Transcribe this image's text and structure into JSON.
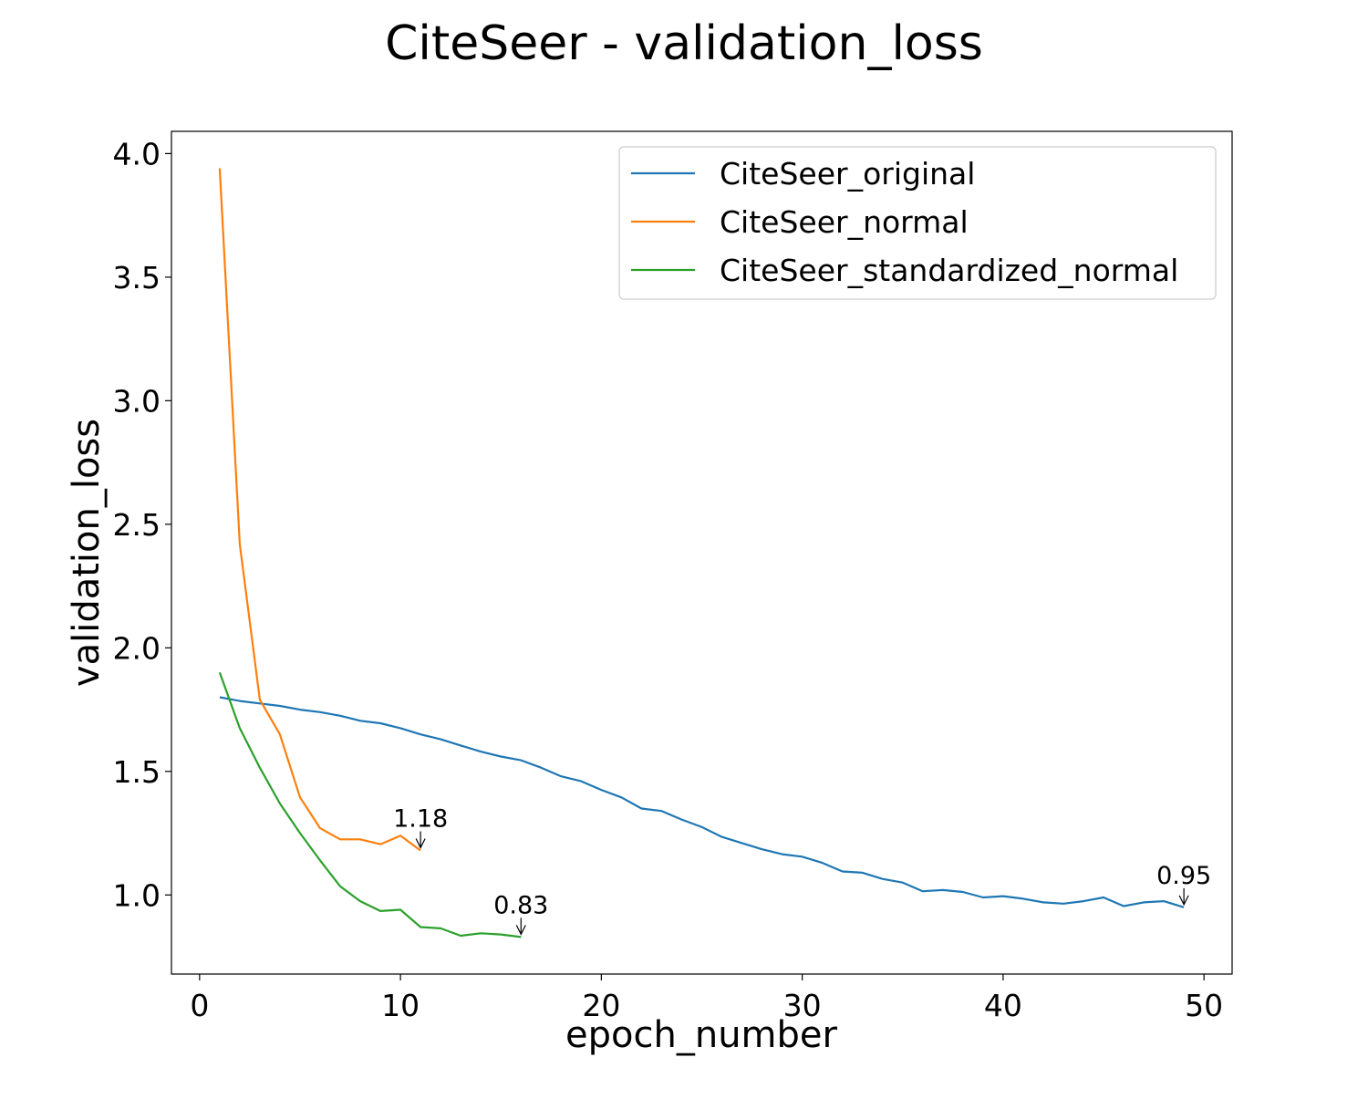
{
  "chart_data": {
    "type": "line",
    "title": "CiteSeer - validation_loss",
    "xlabel": "epoch_number",
    "ylabel": "validation_loss",
    "xlim": [
      -1.4,
      51.4
    ],
    "ylim": [
      0.68,
      4.09
    ],
    "xticks": [
      0,
      10,
      20,
      30,
      40,
      50
    ],
    "yticks": [
      1.0,
      1.5,
      2.0,
      2.5,
      3.0,
      3.5,
      4.0
    ],
    "xtick_labels": [
      "0",
      "10",
      "20",
      "30",
      "40",
      "50"
    ],
    "ytick_labels": [
      "1.0",
      "1.5",
      "2.0",
      "2.5",
      "3.0",
      "3.5",
      "4.0"
    ],
    "grid": false,
    "legend_position": "top-right",
    "series": [
      {
        "name": "CiteSeer_original",
        "color": "#1f77b4",
        "x": [
          1,
          2,
          3,
          4,
          5,
          6,
          7,
          8,
          9,
          10,
          11,
          12,
          13,
          14,
          15,
          16,
          17,
          18,
          19,
          20,
          21,
          22,
          23,
          24,
          25,
          26,
          27,
          28,
          29,
          30,
          31,
          32,
          33,
          34,
          35,
          36,
          37,
          38,
          39,
          40,
          41,
          42,
          43,
          44,
          45,
          46,
          47,
          48,
          49
        ],
        "y": [
          1.8,
          1.785,
          1.775,
          1.765,
          1.75,
          1.74,
          1.725,
          1.705,
          1.695,
          1.675,
          1.65,
          1.63,
          1.605,
          1.58,
          1.56,
          1.545,
          1.515,
          1.48,
          1.46,
          1.425,
          1.395,
          1.35,
          1.34,
          1.305,
          1.275,
          1.235,
          1.21,
          1.185,
          1.165,
          1.155,
          1.13,
          1.095,
          1.09,
          1.065,
          1.05,
          1.015,
          1.02,
          1.012,
          0.99,
          0.995,
          0.985,
          0.97,
          0.965,
          0.975,
          0.99,
          0.955,
          0.97,
          0.975,
          0.95
        ],
        "annotation": {
          "x": 49,
          "y": 0.95,
          "label": "0.95"
        }
      },
      {
        "name": "CiteSeer_normal",
        "color": "#ff7f0e",
        "x": [
          1,
          2,
          3,
          4,
          5,
          6,
          7,
          8,
          9,
          10,
          11
        ],
        "y": [
          3.94,
          2.42,
          1.79,
          1.65,
          1.395,
          1.27,
          1.225,
          1.225,
          1.205,
          1.24,
          1.18
        ],
        "annotation": {
          "x": 11,
          "y": 1.18,
          "label": "1.18"
        }
      },
      {
        "name": "CiteSeer_standardized_normal",
        "color": "#2ca02c",
        "x": [
          1,
          2,
          3,
          4,
          5,
          6,
          7,
          8,
          9,
          10,
          11,
          12,
          13,
          14,
          15,
          16
        ],
        "y": [
          1.9,
          1.675,
          1.515,
          1.37,
          1.25,
          1.14,
          1.035,
          0.975,
          0.935,
          0.94,
          0.87,
          0.865,
          0.835,
          0.845,
          0.84,
          0.83
        ],
        "annotation": {
          "x": 16,
          "y": 0.83,
          "label": "0.83"
        }
      }
    ]
  }
}
